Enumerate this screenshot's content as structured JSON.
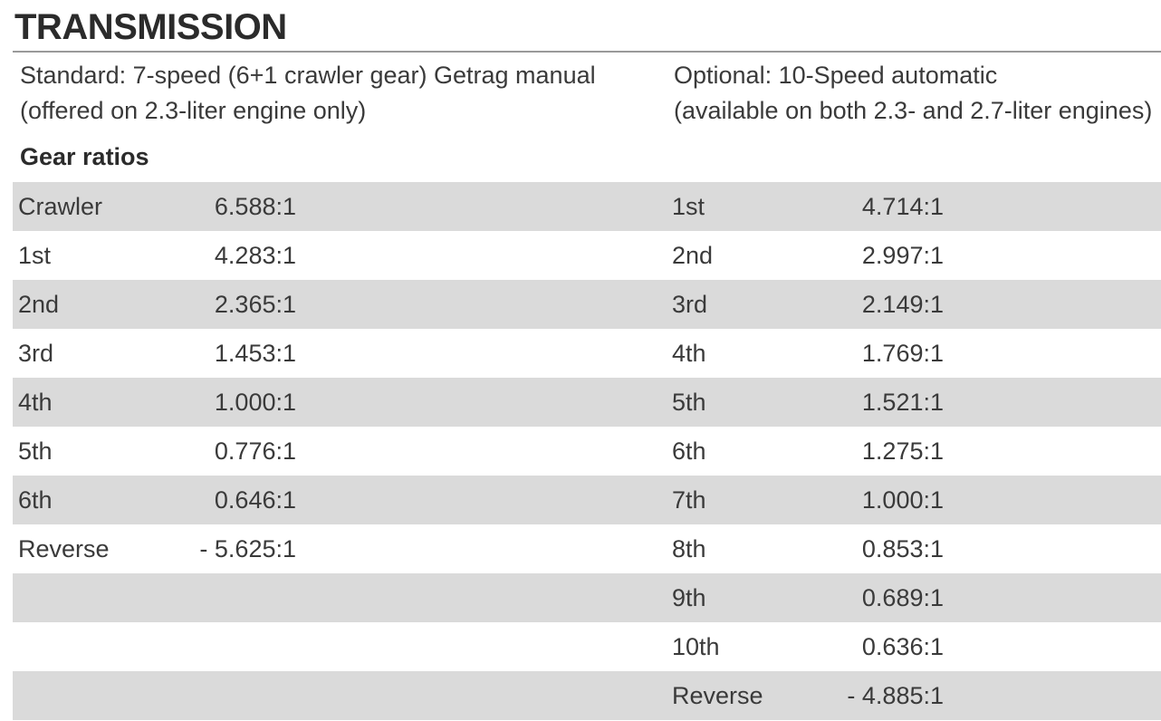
{
  "header": {
    "title": "TRANSMISSION"
  },
  "left_header": [
    "Standard: 7-speed (6+1 crawler gear) Getrag manual",
    "(offered on 2.3-liter engine only)"
  ],
  "right_header": [
    "Optional: 10-Speed automatic",
    "(available on both 2.3- and 2.7-liter engines)"
  ],
  "subheading": "Gear ratios",
  "table": {
    "rows": [
      [
        "Crawler",
        "6.588:1",
        "1st",
        "4.714:1"
      ],
      [
        "1st",
        "4.283:1",
        "2nd",
        "2.997:1"
      ],
      [
        "2nd",
        "2.365:1",
        "3rd",
        "2.149:1"
      ],
      [
        "3rd",
        "1.453:1",
        "4th",
        "1.769:1"
      ],
      [
        "4th",
        "1.000:1",
        "5th",
        "1.521:1"
      ],
      [
        "5th",
        "0.776:1",
        "6th",
        "1.275:1"
      ],
      [
        "6th",
        "0.646:1",
        "7th",
        "1.000:1"
      ],
      [
        "Reverse",
        "- 5.625:1",
        "8th",
        "0.853:1"
      ],
      [
        null,
        null,
        "9th",
        "0.689:1"
      ],
      [
        null,
        null,
        "10th",
        "0.636:1"
      ],
      [
        null,
        null,
        "Reverse",
        "- 4.885:1"
      ]
    ]
  }
}
